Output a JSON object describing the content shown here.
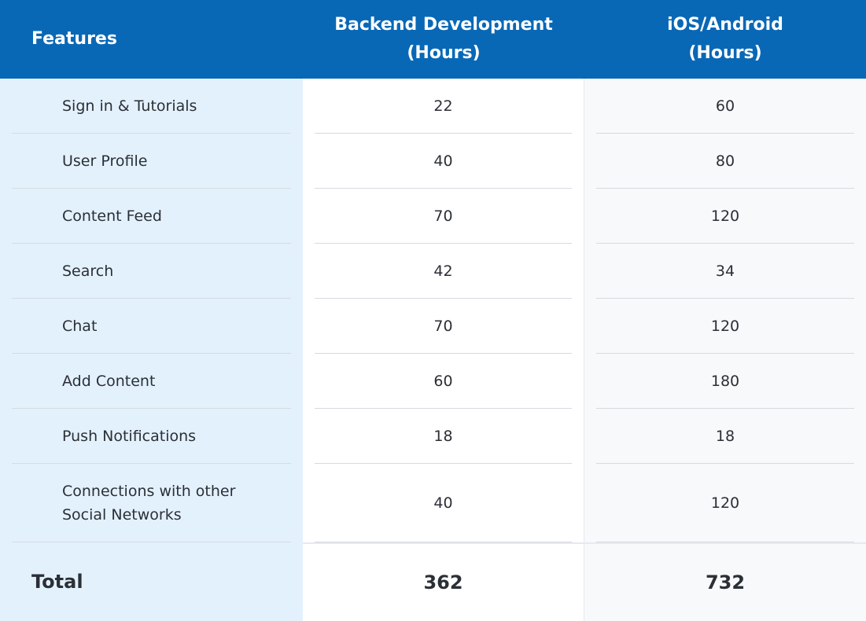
{
  "table": {
    "header": [
      "Features",
      [
        "Backend Development",
        "(Hours)"
      ],
      [
        "iOS/Android",
        "(Hours)"
      ]
    ],
    "rows": [
      [
        "Sign in & Tutorials",
        22,
        60
      ],
      [
        "User Profile",
        40,
        80
      ],
      [
        "Content Feed",
        70,
        120
      ],
      [
        "Search",
        42,
        34
      ],
      [
        "Chat",
        70,
        120
      ],
      [
        "Add Content",
        60,
        180
      ],
      [
        "Push Notifications",
        18,
        18
      ],
      [
        "Connections with other Social Networks",
        40,
        120
      ]
    ],
    "total": [
      "Total",
      362,
      732
    ]
  }
}
